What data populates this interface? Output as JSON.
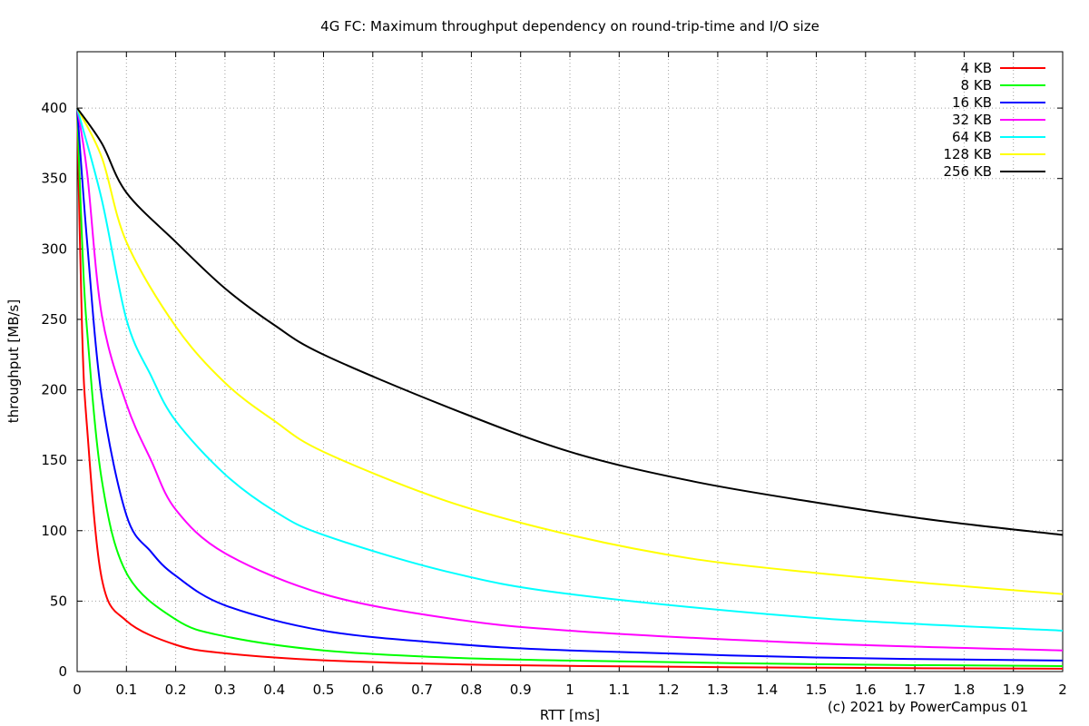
{
  "chart_data": {
    "type": "line",
    "title": "4G FC: Maximum throughput dependency on round-trip-time and I/O size",
    "xlabel": "RTT [ms]",
    "ylabel": "throughput [MB/s]",
    "xlim": [
      0,
      2
    ],
    "ylim": [
      0,
      440
    ],
    "x_ticks": [
      "0",
      "0.1",
      "0.2",
      "0.3",
      "0.4",
      "0.5",
      "0.6",
      "0.7",
      "0.8",
      "0.9",
      "1",
      "1.1",
      "1.2",
      "1.3",
      "1.4",
      "1.5",
      "1.6",
      "1.7",
      "1.8",
      "1.9",
      "2"
    ],
    "y_ticks": [
      "0",
      "50",
      "100",
      "150",
      "200",
      "250",
      "300",
      "350",
      "400"
    ],
    "grid": true,
    "legend_position": "top-right",
    "footer": "(c) 2021 by PowerCampus 01",
    "series": [
      {
        "name": "4 KB",
        "color": "#ff0000",
        "x": [
          0,
          0.01,
          0.02,
          0.05,
          0.1,
          0.2,
          0.3,
          0.5,
          0.75,
          1,
          1.5,
          2
        ],
        "values": [
          400,
          243,
          174,
          66,
          36,
          19,
          13,
          8,
          5.3,
          4,
          2.7,
          2
        ]
      },
      {
        "name": "8 KB",
        "color": "#00ff00",
        "x": [
          0,
          0.01,
          0.02,
          0.05,
          0.1,
          0.2,
          0.3,
          0.5,
          0.75,
          1,
          1.5,
          2
        ],
        "values": [
          400,
          306,
          243,
          136,
          70,
          37,
          25,
          15,
          10,
          7.8,
          5.2,
          3.9
        ]
      },
      {
        "name": "16 KB",
        "color": "#0000ff",
        "x": [
          0,
          0.02,
          0.05,
          0.1,
          0.15,
          0.2,
          0.3,
          0.5,
          0.75,
          1,
          1.5,
          2
        ],
        "values": [
          400,
          306,
          195,
          111,
          85,
          68,
          47,
          29,
          20,
          15,
          10,
          7.8
        ]
      },
      {
        "name": "32 KB",
        "color": "#ff00ff",
        "x": [
          0,
          0.02,
          0.05,
          0.1,
          0.15,
          0.2,
          0.3,
          0.5,
          0.75,
          1,
          1.5,
          2
        ],
        "values": [
          400,
          355,
          253,
          190,
          150,
          115,
          84,
          55,
          38,
          29,
          20,
          15
        ]
      },
      {
        "name": "64 KB",
        "color": "#00ffff",
        "x": [
          0,
          0.05,
          0.1,
          0.15,
          0.2,
          0.3,
          0.4,
          0.5,
          0.75,
          1,
          1.5,
          2
        ],
        "values": [
          400,
          335,
          250,
          210,
          178,
          140,
          114,
          97,
          71,
          55,
          38,
          29
        ]
      },
      {
        "name": "128 KB",
        "color": "#ffff00",
        "x": [
          0,
          0.05,
          0.1,
          0.2,
          0.3,
          0.4,
          0.5,
          0.75,
          1,
          1.25,
          1.5,
          1.75,
          2
        ],
        "values": [
          400,
          365,
          305,
          245,
          205,
          178,
          156,
          121,
          97,
          80,
          70,
          62,
          55
        ]
      },
      {
        "name": "256 KB",
        "color": "#000000",
        "x": [
          0,
          0.05,
          0.1,
          0.2,
          0.3,
          0.4,
          0.5,
          0.75,
          1,
          1.25,
          1.5,
          1.75,
          2
        ],
        "values": [
          400,
          375,
          340,
          305,
          272,
          246,
          225,
          188,
          156,
          135,
          120,
          107,
          97
        ]
      }
    ]
  }
}
